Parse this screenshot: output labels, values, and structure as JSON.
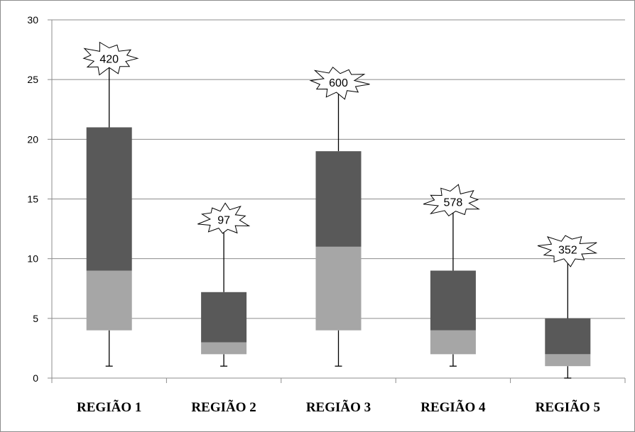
{
  "chart_data": {
    "type": "boxplot",
    "title": "",
    "xlabel": "",
    "ylabel": "",
    "ylim": [
      0,
      30
    ],
    "yticks": [
      "0",
      "5",
      "10",
      "15",
      "20",
      "25",
      "30"
    ],
    "grid": true,
    "categories": [
      "REGIÃO 1",
      "REGIÃO 2",
      "REGIÃO 3",
      "REGIÃO 4",
      "REGIÃO 5"
    ],
    "boxes": [
      {
        "category": "REGIÃO 1",
        "min": 1,
        "q1": 4,
        "median": 9,
        "q3": 21,
        "max": 26,
        "outlier_label": "420"
      },
      {
        "category": "REGIÃO 2",
        "min": 1,
        "q1": 2,
        "median": 3,
        "q3": 7.2,
        "max": 12.5,
        "outlier_label": "97"
      },
      {
        "category": "REGIÃO 3",
        "min": 1,
        "q1": 4,
        "median": 11,
        "q3": 19,
        "max": 24,
        "outlier_label": "600"
      },
      {
        "category": "REGIÃO 4",
        "min": 1,
        "q1": 2,
        "median": 4,
        "q3": 9,
        "max": 14,
        "outlier_label": "578"
      },
      {
        "category": "REGIÃO 5",
        "min": 0,
        "q1": 1,
        "median": 2,
        "q3": 5,
        "max": 10,
        "outlier_label": "352"
      }
    ],
    "colors": {
      "lower_box": "#a6a6a6",
      "upper_box": "#595959",
      "grid": "#8c8c8c",
      "whisker": "#000000"
    }
  }
}
